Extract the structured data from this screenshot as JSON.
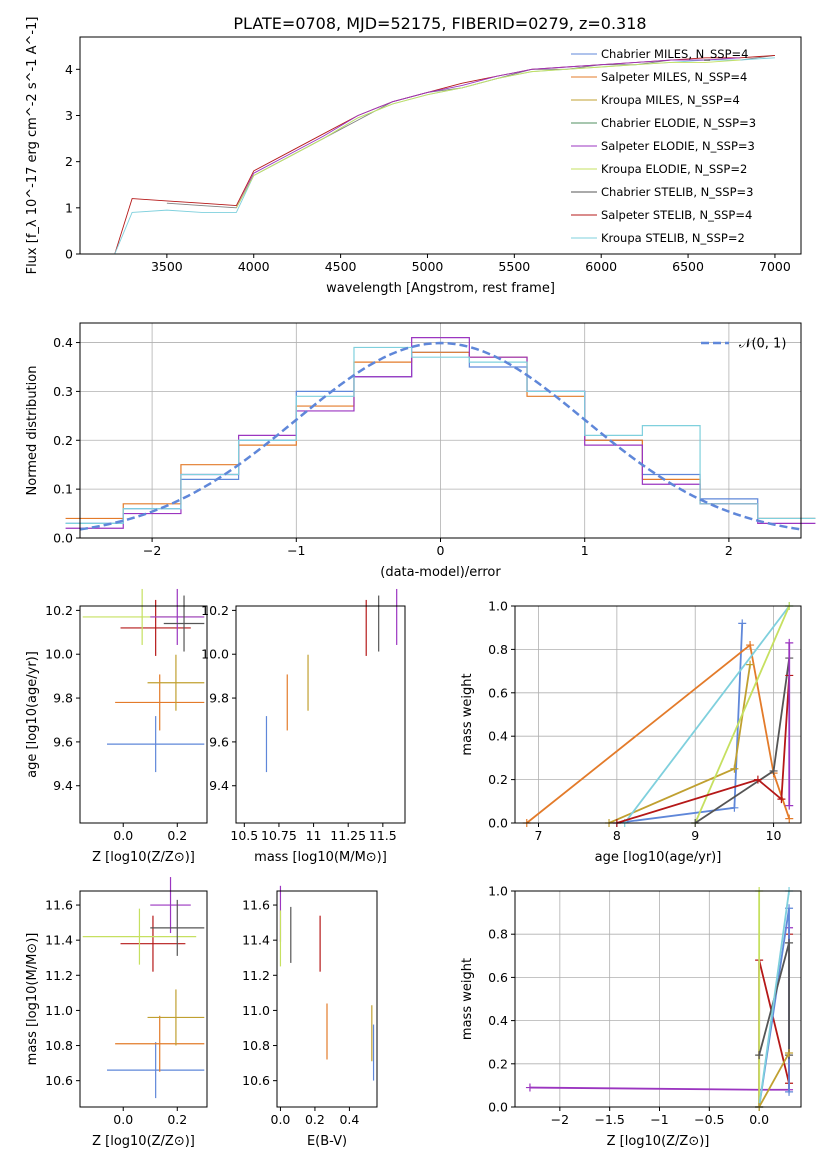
{
  "figure": {
    "title": "PLATE=0708, MJD=52175, FIBERID=0279, z=0.318"
  },
  "colors": {
    "Chabrier MILES": "#5f87d9",
    "Salpeter MILES": "#e37b2a",
    "Kroupa MILES": "#c0a030",
    "Chabrier ELODIE": "#4f8f5f",
    "Salpeter ELODIE": "#9b35c0",
    "Kroupa ELODIE": "#c6e060",
    "Chabrier STELIB": "#555555",
    "Salpeter STELIB": "#b51818",
    "Kroupa STELIB": "#7fd0dd",
    "data": "#808080"
  },
  "chart_data": [
    {
      "type": "line",
      "xlabel": "wavelength [Angstrom, rest frame]",
      "ylabel": "Flux [f_λ 10^-17 erg cm^-2 s^-1 A^-1]",
      "xlim": [
        3000,
        7150
      ],
      "ylim": [
        0,
        4.7
      ],
      "xticks": [
        3500,
        4000,
        4500,
        5000,
        5500,
        6000,
        6500,
        7000
      ],
      "yticks": [
        0,
        1,
        2,
        3,
        4
      ],
      "grid": false,
      "legend_position": "top-right",
      "legend": [
        "Chabrier MILES, N_SSP=4",
        "Salpeter MILES, N_SSP=4",
        "Kroupa MILES, N_SSP=4",
        "Chabrier ELODIE, N_SSP=3",
        "Salpeter ELODIE, N_SSP=3",
        "Kroupa ELODIE, N_SSP=2",
        "Chabrier STELIB, N_SSP=3",
        "Salpeter STELIB, N_SSP=4",
        "Kroupa STELIB, N_SSP=2"
      ],
      "series": [
        {
          "name": "data",
          "x": [
            3500,
            3700,
            3900,
            4000,
            4200,
            4400,
            4600,
            4800,
            5000,
            5200,
            5400,
            5600,
            5800,
            6000,
            6200,
            6400,
            6600,
            6800,
            7000
          ],
          "y": [
            1.1,
            1.05,
            1.0,
            1.7,
            2.1,
            2.5,
            2.9,
            3.3,
            3.5,
            3.6,
            3.8,
            4.0,
            4.0,
            4.1,
            4.1,
            4.2,
            4.2,
            4.2,
            4.3
          ]
        },
        {
          "name": "Salpeter STELIB",
          "x": [
            3200,
            3300,
            3500,
            3700,
            3900,
            4000,
            4200,
            4400,
            4600,
            4800,
            5000,
            5200,
            5400,
            5600,
            5800,
            6000,
            6200,
            6400,
            6600,
            6800,
            7000
          ],
          "y": [
            0.0,
            1.2,
            1.15,
            1.1,
            1.05,
            1.8,
            2.2,
            2.6,
            3.0,
            3.3,
            3.5,
            3.7,
            3.85,
            4.0,
            4.05,
            4.1,
            4.15,
            4.2,
            4.25,
            4.25,
            4.3
          ]
        },
        {
          "name": "Kroupa STELIB",
          "x": [
            3200,
            3300,
            3500,
            3700,
            3900,
            4000,
            4200,
            4400,
            4600,
            4800,
            5000,
            5200,
            5400,
            5600,
            5800,
            6000,
            6200,
            6400,
            6600,
            6800,
            7000
          ],
          "y": [
            0.0,
            0.9,
            0.95,
            0.9,
            0.9,
            1.7,
            2.1,
            2.5,
            2.95,
            3.25,
            3.45,
            3.6,
            3.8,
            3.95,
            4.0,
            4.05,
            4.1,
            4.15,
            4.2,
            4.2,
            4.25
          ]
        },
        {
          "name": "Salpeter ELODIE",
          "x": [
            3900,
            4000,
            4200,
            4400,
            4600,
            4800,
            5000,
            5200,
            5400,
            5600,
            5800,
            6000,
            6200,
            6400,
            6600,
            6800
          ],
          "y": [
            1.0,
            1.75,
            2.15,
            2.55,
            3.0,
            3.3,
            3.5,
            3.65,
            3.85,
            4.0,
            4.05,
            4.1,
            4.15,
            4.2,
            4.2,
            4.25
          ]
        },
        {
          "name": "Kroupa ELODIE",
          "x": [
            3900,
            4000,
            4200,
            4400,
            4600,
            4800,
            5000,
            5200,
            5400,
            5600,
            5800,
            6000,
            6200,
            6400,
            6600,
            6800
          ],
          "y": [
            1.0,
            1.7,
            2.1,
            2.5,
            2.95,
            3.25,
            3.45,
            3.6,
            3.8,
            3.95,
            4.0,
            4.05,
            4.1,
            4.15,
            4.15,
            4.2
          ]
        }
      ]
    },
    {
      "type": "line",
      "xlabel": "(data-model)/error",
      "ylabel": "Normed distribution",
      "xlim": [
        -2.5,
        2.5
      ],
      "ylim": [
        0,
        0.44
      ],
      "xticks": [
        -2,
        -1,
        0,
        1,
        2
      ],
      "yticks": [
        0.0,
        0.1,
        0.2,
        0.3,
        0.4
      ],
      "grid": true,
      "legend_position": "top-right",
      "legend": [
        "𝒩(0, 1)"
      ],
      "series": [
        {
          "name": "Chabrier MILES",
          "x": [
            -2.4,
            -2.0,
            -1.6,
            -1.2,
            -0.8,
            -0.4,
            0.0,
            0.4,
            0.8,
            1.2,
            1.6,
            2.0,
            2.4
          ],
          "y": [
            0.03,
            0.06,
            0.12,
            0.2,
            0.3,
            0.33,
            0.38,
            0.35,
            0.3,
            0.2,
            0.13,
            0.08,
            0.04
          ]
        },
        {
          "name": "Salpeter MILES",
          "x": [
            -2.4,
            -2.0,
            -1.6,
            -1.2,
            -0.8,
            -0.4,
            0.0,
            0.4,
            0.8,
            1.2,
            1.6,
            2.0,
            2.4
          ],
          "y": [
            0.04,
            0.07,
            0.15,
            0.19,
            0.27,
            0.36,
            0.38,
            0.37,
            0.29,
            0.2,
            0.12,
            0.07,
            0.04
          ]
        },
        {
          "name": "Salpeter ELODIE",
          "x": [
            -2.4,
            -2.0,
            -1.6,
            -1.2,
            -0.8,
            -0.4,
            0.0,
            0.4,
            0.8,
            1.2,
            1.6,
            2.0,
            2.4
          ],
          "y": [
            0.02,
            0.05,
            0.13,
            0.21,
            0.26,
            0.33,
            0.41,
            0.37,
            0.3,
            0.19,
            0.11,
            0.07,
            0.03
          ]
        },
        {
          "name": "Kroupa STELIB",
          "x": [
            -2.4,
            -2.0,
            -1.6,
            -1.2,
            -0.8,
            -0.4,
            0.0,
            0.4,
            0.8,
            1.2,
            1.6,
            2.0,
            2.4
          ],
          "y": [
            0.03,
            0.06,
            0.13,
            0.2,
            0.29,
            0.39,
            0.37,
            0.36,
            0.3,
            0.21,
            0.23,
            0.07,
            0.04
          ]
        }
      ]
    },
    {
      "type": "scatter",
      "xlabel": "Z [log10(Z/Z⊙)]",
      "ylabel": "age [log10(age/yr)]",
      "xlim": [
        -0.16,
        0.31
      ],
      "ylim": [
        9.23,
        10.22
      ],
      "xticks": [
        0.0,
        0.2
      ],
      "yticks": [
        9.4,
        9.6,
        9.8,
        10.0,
        10.2
      ],
      "grid": false,
      "points": [
        {
          "series": "Chabrier MILES",
          "x": [
            -0.06,
            0.3
          ],
          "y": 9.59
        },
        {
          "series": "Salpeter MILES",
          "x": [
            -0.03,
            0.3
          ],
          "y": 9.78
        },
        {
          "series": "Kroupa MILES",
          "x": [
            0.09,
            0.3
          ],
          "y": 9.87
        },
        {
          "series": "Salpeter STELIB",
          "x": [
            -0.01,
            0.25
          ],
          "y": 10.12
        },
        {
          "series": "Kroupa ELODIE",
          "x": [
            -0.15,
            0.29
          ],
          "y": 10.17
        },
        {
          "series": "Salpeter ELODIE",
          "x": [
            0.1,
            0.3
          ],
          "y": 10.17
        },
        {
          "series": "Chabrier STELIB",
          "x": [
            0.15,
            0.3
          ],
          "y": 10.14
        }
      ]
    },
    {
      "type": "scatter",
      "xlabel": "mass [log10(M/M⊙)]",
      "ylabel": "",
      "xlim": [
        10.44,
        11.66
      ],
      "ylim": [
        9.23,
        10.22
      ],
      "xticks": [
        10.5,
        10.75,
        11.0,
        11.25,
        11.5
      ],
      "yticks": [
        9.4,
        9.6,
        9.8,
        10.0,
        10.2
      ],
      "grid": false,
      "points": [
        {
          "series": "Chabrier MILES",
          "x": 10.66,
          "y": 9.59
        },
        {
          "series": "Salpeter MILES",
          "x": 10.81,
          "y": 9.78
        },
        {
          "series": "Kroupa MILES",
          "x": 10.96,
          "y": 9.87
        },
        {
          "series": "Salpeter STELIB",
          "x": 11.38,
          "y": 10.12
        },
        {
          "series": "Salpeter ELODIE",
          "x": 11.6,
          "y": 10.17
        },
        {
          "series": "Chabrier STELIB",
          "x": 11.47,
          "y": 10.14
        }
      ]
    },
    {
      "type": "line",
      "xlabel": "age [log10(age/yr)]",
      "ylabel": "mass weight",
      "xlim": [
        6.7,
        10.35
      ],
      "ylim": [
        0,
        1.0
      ],
      "xticks": [
        7,
        8,
        9,
        10
      ],
      "yticks": [
        0.0,
        0.2,
        0.4,
        0.6,
        0.8,
        1.0
      ],
      "grid": true,
      "series": [
        {
          "name": "Chabrier MILES",
          "x": [
            8.0,
            9.5,
            9.6
          ],
          "y": [
            0.0,
            0.07,
            0.92
          ]
        },
        {
          "name": "Salpeter MILES",
          "x": [
            6.85,
            9.7,
            10.0,
            10.2
          ],
          "y": [
            0.0,
            0.82,
            0.23,
            0.02
          ]
        },
        {
          "name": "Kroupa MILES",
          "x": [
            7.9,
            9.5,
            9.7
          ],
          "y": [
            0.0,
            0.25,
            0.73
          ]
        },
        {
          "name": "Kroupa STELIB",
          "x": [
            8.1,
            10.2
          ],
          "y": [
            0.0,
            1.0
          ]
        },
        {
          "name": "Kroupa ELODIE",
          "x": [
            9.0,
            10.2
          ],
          "y": [
            0.0,
            1.0
          ]
        },
        {
          "name": "Chabrier STELIB",
          "x": [
            9.0,
            10.0,
            10.2
          ],
          "y": [
            0.0,
            0.24,
            0.76
          ]
        },
        {
          "name": "Salpeter STELIB",
          "x": [
            8.0,
            9.8,
            10.1,
            10.2
          ],
          "y": [
            0.0,
            0.2,
            0.11,
            0.68
          ]
        },
        {
          "name": "Salpeter ELODIE",
          "x": [
            10.2,
            10.2
          ],
          "y": [
            0.08,
            0.83
          ]
        }
      ]
    },
    {
      "type": "scatter",
      "xlabel": "Z [log10(Z/Z⊙)]",
      "ylabel": "mass [log10(M/M⊙)]",
      "xlim": [
        -0.16,
        0.31
      ],
      "ylim": [
        10.45,
        11.68
      ],
      "xticks": [
        0.0,
        0.2
      ],
      "yticks": [
        10.6,
        10.8,
        11.0,
        11.2,
        11.4,
        11.6
      ],
      "grid": false,
      "points": [
        {
          "series": "Chabrier MILES",
          "x": [
            -0.06,
            0.3
          ],
          "y": 10.66
        },
        {
          "series": "Salpeter MILES",
          "x": [
            -0.03,
            0.3
          ],
          "y": 10.81
        },
        {
          "series": "Kroupa MILES",
          "x": [
            0.09,
            0.3
          ],
          "y": 10.96
        },
        {
          "series": "Salpeter STELIB",
          "x": [
            -0.01,
            0.23
          ],
          "y": 11.38
        },
        {
          "series": "Kroupa ELODIE",
          "x": [
            -0.15,
            0.27
          ],
          "y": 11.42
        },
        {
          "series": "Salpeter ELODIE",
          "x": [
            0.1,
            0.25
          ],
          "y": 11.6
        },
        {
          "series": "Chabrier STELIB",
          "x": [
            0.1,
            0.3
          ],
          "y": 11.47
        }
      ]
    },
    {
      "type": "scatter",
      "xlabel": "E(B-V)",
      "ylabel": "",
      "xlim": [
        -0.02,
        0.56
      ],
      "ylim": [
        10.45,
        11.68
      ],
      "xticks": [
        0.0,
        0.2,
        0.4
      ],
      "yticks": [
        10.6,
        10.8,
        11.0,
        11.2,
        11.4,
        11.6
      ],
      "grid": false,
      "points": [
        {
          "series": "Salpeter ELODIE",
          "x": 0.0,
          "y": 11.55
        },
        {
          "series": "Kroupa ELODIE",
          "x": 0.0,
          "y": 11.41
        },
        {
          "series": "Chabrier STELIB",
          "x": 0.06,
          "y": 11.43
        },
        {
          "series": "Salpeter STELIB",
          "x": 0.23,
          "y": 11.38
        },
        {
          "series": "Salpeter MILES",
          "x": 0.27,
          "y": 10.88
        },
        {
          "series": "Kroupa MILES",
          "x": 0.53,
          "y": 10.87
        },
        {
          "series": "Chabrier MILES",
          "x": 0.54,
          "y": 10.76
        }
      ]
    },
    {
      "type": "line",
      "xlabel": "Z [log10(Z/Z⊙)]",
      "ylabel": "mass weight",
      "xlim": [
        -2.45,
        0.42
      ],
      "ylim": [
        0,
        1.0
      ],
      "xticks": [
        -2.0,
        -1.5,
        -1.0,
        -0.5,
        0.0
      ],
      "yticks": [
        0.0,
        0.2,
        0.4,
        0.6,
        0.8,
        1.0
      ],
      "grid": true,
      "series": [
        {
          "name": "Salpeter ELODIE",
          "x": [
            -2.3,
            0.0,
            0.3,
            0.3
          ],
          "y": [
            0.09,
            0.08,
            0.08,
            0.83
          ]
        },
        {
          "name": "Salpeter STELIB",
          "x": [
            0.0,
            0.0,
            0.3,
            0.3
          ],
          "y": [
            0.0,
            0.68,
            0.11,
            0.8
          ]
        },
        {
          "name": "Kroupa ELODIE",
          "x": [
            0.0,
            0.0
          ],
          "y": [
            0.0,
            1.0
          ]
        },
        {
          "name": "Chabrier MILES",
          "x": [
            0.0,
            0.3,
            0.3
          ],
          "y": [
            0.0,
            0.92,
            0.07
          ]
        },
        {
          "name": "Chabrier STELIB",
          "x": [
            0.0,
            0.3,
            0.3
          ],
          "y": [
            0.24,
            0.76,
            0.24
          ]
        },
        {
          "name": "Kroupa STELIB",
          "x": [
            0.0,
            0.3
          ],
          "y": [
            0.0,
            1.0
          ]
        },
        {
          "name": "Kroupa MILES",
          "x": [
            0.0,
            0.3
          ],
          "y": [
            0.0,
            0.25
          ]
        }
      ]
    }
  ]
}
